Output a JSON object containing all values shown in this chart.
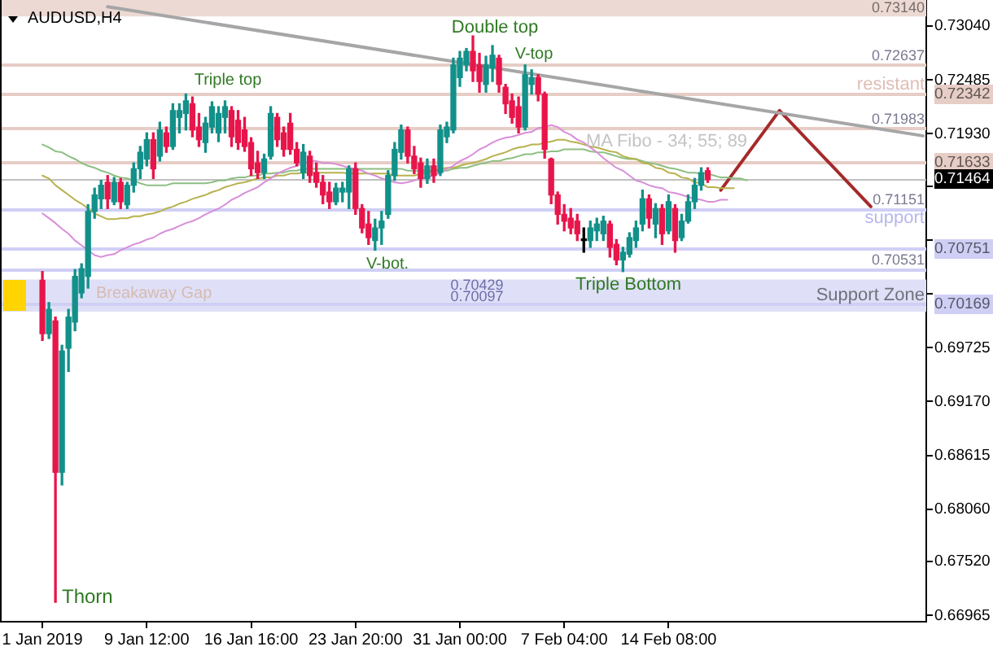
{
  "chart_data": {
    "type": "candlestick",
    "title": "AUDUSD,H4",
    "categories": [
      null,
      null,
      null,
      null,
      null,
      null,
      "1 Jan 2019",
      null,
      null,
      null,
      null,
      null,
      null,
      null,
      null,
      null,
      null,
      null,
      null,
      null,
      null,
      null,
      "9 Jan 12:00",
      null,
      null,
      null,
      null,
      null,
      null,
      null,
      null,
      null,
      null,
      null,
      null,
      null,
      null,
      null,
      "16 Jan 16:00",
      null,
      null,
      null,
      null,
      null,
      null,
      null,
      null,
      null,
      null,
      null,
      null,
      null,
      null,
      null,
      "23 Jan 20:00",
      null,
      null,
      null,
      null,
      null,
      null,
      null,
      null,
      null,
      null,
      null,
      null,
      null,
      null,
      null,
      "31 Jan 00:00",
      null,
      null,
      null,
      null,
      null,
      null,
      null,
      null,
      null,
      null,
      null,
      null,
      null,
      null,
      null,
      "7 Feb 04:00",
      null,
      null,
      null,
      null,
      null,
      null,
      null,
      null,
      null,
      null,
      null,
      null,
      null,
      null,
      null,
      "14 Feb 08:00",
      null,
      null,
      null,
      null,
      null,
      null,
      null,
      null,
      null,
      null,
      null,
      null,
      null,
      null,
      null,
      null,
      null,
      null,
      null,
      null,
      null,
      null,
      null,
      null,
      null,
      null,
      null,
      null,
      null,
      null,
      null,
      null,
      null,
      null,
      null,
      null,
      null,
      null,
      null
    ],
    "ohlc": [
      null,
      null,
      null,
      null,
      null,
      null,
      [
        0.7042,
        0.7051,
        0.698,
        0.6987
      ],
      [
        0.6987,
        0.7019,
        0.6982,
        0.7012
      ],
      [
        0.7,
        0.7004,
        0.671,
        0.6844
      ],
      [
        0.6844,
        0.6975,
        0.6831,
        0.6969
      ],
      [
        0.6972,
        0.7012,
        0.6948,
        0.7004
      ],
      [
        0.6999,
        0.7053,
        0.699,
        0.7046
      ],
      [
        0.7029,
        0.7059,
        0.7024,
        0.7054
      ],
      [
        0.7046,
        0.712,
        0.7034,
        0.7113
      ],
      [
        0.7113,
        0.7137,
        0.7106,
        0.713
      ],
      [
        0.7126,
        0.7145,
        0.7116,
        0.714
      ],
      [
        0.7143,
        0.715,
        0.7116,
        0.7126
      ],
      [
        0.7123,
        0.7148,
        0.712,
        0.7143
      ],
      [
        0.7143,
        0.7147,
        0.7116,
        0.7123
      ],
      [
        0.712,
        0.7143,
        0.7116,
        0.714
      ],
      [
        0.714,
        0.7163,
        0.7133,
        0.7157
      ],
      [
        0.7157,
        0.718,
        0.7147,
        0.7174
      ],
      [
        0.7167,
        0.7194,
        0.716,
        0.7187
      ],
      [
        0.7187,
        0.7194,
        0.7147,
        0.7157
      ],
      [
        0.717,
        0.7205,
        0.7165,
        0.7197
      ],
      [
        0.7194,
        0.72,
        0.7174,
        0.718
      ],
      [
        0.718,
        0.7224,
        0.7177,
        0.7217
      ],
      [
        0.721,
        0.7224,
        0.7194,
        0.7217
      ],
      [
        0.7214,
        0.7234,
        0.7197,
        0.7227
      ],
      [
        0.7224,
        0.7231,
        0.719,
        0.7197
      ],
      [
        0.72,
        0.7214,
        0.718,
        0.7187
      ],
      [
        0.7184,
        0.721,
        0.7174,
        0.7204
      ],
      [
        0.72,
        0.7226,
        0.7194,
        0.7221
      ],
      [
        0.7194,
        0.7221,
        0.7185,
        0.7214
      ],
      [
        0.721,
        0.7227,
        0.7194,
        0.7221
      ],
      [
        0.7217,
        0.7221,
        0.718,
        0.719
      ],
      [
        0.7207,
        0.7217,
        0.7177,
        0.7184
      ],
      [
        0.7197,
        0.721,
        0.7175,
        0.718
      ],
      [
        0.7184,
        0.7189,
        0.715,
        0.7157
      ],
      [
        0.7163,
        0.7175,
        0.7147,
        0.7153
      ],
      [
        0.7153,
        0.7172,
        0.7147,
        0.7167
      ],
      [
        0.717,
        0.7221,
        0.7167,
        0.7214
      ],
      [
        0.721,
        0.7214,
        0.718,
        0.7187
      ],
      [
        0.7194,
        0.72,
        0.717,
        0.7177
      ],
      [
        0.7204,
        0.7214,
        0.7172,
        0.7177
      ],
      [
        0.7177,
        0.7184,
        0.716,
        0.7163
      ],
      [
        0.7153,
        0.7182,
        0.7147,
        0.7174
      ],
      [
        0.717,
        0.7175,
        0.7143,
        0.715
      ],
      [
        0.7153,
        0.7163,
        0.7138,
        0.7143
      ],
      [
        0.7143,
        0.715,
        0.7121,
        0.713
      ],
      [
        0.7133,
        0.7143,
        0.7116,
        0.7123
      ],
      [
        0.7123,
        0.7142,
        0.712,
        0.7137
      ],
      [
        0.7133,
        0.7143,
        0.7123,
        0.7137
      ],
      [
        0.7133,
        0.716,
        0.7116,
        0.7157
      ],
      [
        0.7157,
        0.7163,
        0.711,
        0.7116
      ],
      [
        0.7116,
        0.712,
        0.7091,
        0.7096
      ],
      [
        0.71,
        0.7113,
        0.7079,
        0.7086
      ],
      [
        0.7083,
        0.7105,
        0.7073,
        0.7096
      ],
      [
        0.7096,
        0.7113,
        0.7079,
        0.7103
      ],
      [
        0.711,
        0.7155,
        0.7106,
        0.715
      ],
      [
        0.715,
        0.7184,
        0.7145,
        0.7177
      ],
      [
        0.7174,
        0.7202,
        0.7167,
        0.7197
      ],
      [
        0.7197,
        0.72,
        0.7163,
        0.717
      ],
      [
        0.717,
        0.718,
        0.7152,
        0.7157
      ],
      [
        0.7163,
        0.7168,
        0.7138,
        0.7147
      ],
      [
        0.7147,
        0.7167,
        0.7142,
        0.716
      ],
      [
        0.716,
        0.7167,
        0.7143,
        0.715
      ],
      [
        0.7153,
        0.7202,
        0.715,
        0.7197
      ],
      [
        0.719,
        0.7205,
        0.7184,
        0.72
      ],
      [
        0.7197,
        0.7271,
        0.7194,
        0.7264
      ],
      [
        0.7251,
        0.7278,
        0.7242,
        0.7271
      ],
      [
        0.7264,
        0.7281,
        0.7258,
        0.7278
      ],
      [
        0.7278,
        0.7294,
        0.7247,
        0.7258
      ],
      [
        0.7264,
        0.7276,
        0.7236,
        0.7247
      ],
      [
        0.7244,
        0.7273,
        0.7236,
        0.7264
      ],
      [
        0.7261,
        0.7284,
        0.7247,
        0.7274
      ],
      [
        0.7271,
        0.7274,
        0.7236,
        0.7244
      ],
      [
        0.7241,
        0.7244,
        0.7214,
        0.7224
      ],
      [
        0.7227,
        0.7234,
        0.7204,
        0.721
      ],
      [
        0.7221,
        0.7231,
        0.7194,
        0.72
      ],
      [
        0.72,
        0.7264,
        0.7197,
        0.7254
      ],
      [
        0.7244,
        0.7259,
        0.7234,
        0.7251
      ],
      [
        0.7251,
        0.7254,
        0.7227,
        0.7234
      ],
      [
        0.7234,
        0.7236,
        0.7168,
        0.7177
      ],
      [
        0.7167,
        0.7168,
        0.7121,
        0.713
      ],
      [
        0.713,
        0.7133,
        0.71,
        0.711
      ],
      [
        0.711,
        0.712,
        0.7093,
        0.7103
      ],
      [
        0.7106,
        0.7116,
        0.709,
        0.7096
      ],
      [
        0.7103,
        0.711,
        0.7083,
        0.709
      ],
      [
        0.7083,
        0.7096,
        0.7071,
        0.7083
      ],
      [
        0.7083,
        0.7103,
        0.7076,
        0.7096
      ],
      [
        0.7093,
        0.7106,
        0.7083,
        0.71
      ],
      [
        0.709,
        0.7108,
        0.7083,
        0.7103
      ],
      [
        0.71,
        0.7103,
        0.7066,
        0.7076
      ],
      [
        0.7079,
        0.7084,
        0.7058,
        0.7063
      ],
      [
        0.7063,
        0.7076,
        0.7051,
        0.7071
      ],
      [
        0.7069,
        0.7091,
        0.7066,
        0.7086
      ],
      [
        0.7083,
        0.7103,
        0.7076,
        0.7096
      ],
      [
        0.71,
        0.7135,
        0.7093,
        0.7126
      ],
      [
        0.7126,
        0.713,
        0.7096,
        0.7106
      ],
      [
        0.71,
        0.7121,
        0.7086,
        0.7116
      ],
      [
        0.7116,
        0.712,
        0.7079,
        0.709
      ],
      [
        0.7093,
        0.713,
        0.709,
        0.7123
      ],
      [
        0.7116,
        0.712,
        0.7071,
        0.7083
      ],
      [
        0.7086,
        0.711,
        0.7083,
        0.7103
      ],
      [
        0.7103,
        0.713,
        0.7101,
        0.7123
      ],
      [
        0.7123,
        0.7147,
        0.7116,
        0.714
      ],
      [
        0.714,
        0.7158,
        0.7135,
        0.7153
      ],
      [
        0.7155,
        0.7158,
        0.7143,
        0.7146
      ],
      null,
      null,
      null,
      null,
      null,
      null,
      null,
      null,
      null,
      null,
      null,
      null,
      null,
      null,
      null,
      null,
      null,
      null,
      null,
      null,
      null,
      null,
      null,
      null,
      null,
      null,
      null,
      null,
      null,
      null,
      null,
      null,
      null
    ],
    "colors": [
      null,
      null,
      null,
      null,
      null,
      null,
      "#e8154b",
      "#12908a",
      "#e8154b",
      "#12908a",
      "#12908a",
      "#12908a",
      "#12908a",
      "#12908a",
      "#12908a",
      "#12908a",
      "#e8154b",
      "#12908a",
      "#e8154b",
      "#12908a",
      "#12908a",
      "#12908a",
      "#12908a",
      "#e8154b",
      "#12908a",
      "#e8154b",
      "#12908a",
      "#12908a",
      "#12908a",
      "#e8154b",
      "#e8154b",
      "#12908a",
      "#12908a",
      "#12908a",
      "#12908a",
      "#e8154b",
      "#e8154b",
      "#e8154b",
      "#e8154b",
      "#e8154b",
      "#12908a",
      "#12908a",
      "#e8154b",
      "#e8154b",
      "#e8154b",
      "#e8154b",
      "#12908a",
      "#e8154b",
      "#e8154b",
      "#e8154b",
      "#e8154b",
      "#12908a",
      "#12908a",
      "#12908a",
      "#e8154b",
      "#e8154b",
      "#e8154b",
      "#12908a",
      "#12908a",
      "#12908a",
      "#12908a",
      "#12908a",
      "#e8154b",
      "#e8154b",
      "#e8154b",
      "#12908a",
      "#e8154b",
      "#12908a",
      "#12908a",
      "#12908a",
      "#12908a",
      "#12908a",
      "#e8154b",
      "#e8154b",
      "#12908a",
      "#12908a",
      "#e8154b",
      "#e8154b",
      "#e8154b",
      "#e8154b",
      "#12908a",
      "#12908a",
      "#e8154b",
      "#e8154b",
      "#e8154b",
      "#e8154b",
      "#e8154b",
      "#e8154b",
      "#e8154b",
      "#000000",
      "#12908a",
      "#12908a",
      "#12908a",
      "#e8154b",
      "#e8154b",
      "#12908a",
      "#12908a",
      "#12908a",
      "#12908a",
      "#e8154b",
      "#12908a",
      "#e8154b",
      "#12908a",
      "#e8154b",
      "#12908a",
      "#12908a",
      "#12908a",
      "#12908a",
      "#e8154b",
      null,
      null,
      null,
      null,
      null,
      null,
      null,
      null,
      null,
      null,
      null,
      null,
      null,
      null,
      null,
      null,
      null,
      null,
      null,
      null,
      null,
      null,
      null,
      null,
      null,
      null,
      null,
      null,
      null,
      null,
      null,
      null,
      null
    ],
    "series": [
      {
        "type": "line",
        "color": "#d98ed9",
        "values": [
          null,
          null,
          null,
          null,
          null,
          null,
          0.7111,
          0.7106,
          0.7101,
          0.7095,
          0.709,
          0.7083,
          0.7078,
          0.7073,
          0.7068,
          0.7066,
          0.7068,
          0.7069,
          0.7073,
          0.7076,
          0.7079,
          0.7081,
          0.7084,
          0.7086,
          0.709,
          0.7093,
          0.7095,
          0.7098,
          0.7101,
          0.7103,
          0.7106,
          0.711,
          0.7113,
          0.7116,
          0.712,
          0.7125,
          0.7128,
          0.7132,
          0.7135,
          0.7138,
          0.7143,
          0.7147,
          0.7152,
          0.7155,
          0.7158,
          0.716,
          0.7163,
          0.7165,
          0.7165,
          0.7163,
          0.7163,
          0.7162,
          0.716,
          0.7158,
          0.7157,
          0.7155,
          0.7152,
          0.715,
          0.7147,
          0.7145,
          0.7143,
          0.7142,
          0.7143,
          0.7145,
          0.7147,
          0.7148,
          0.715,
          0.7153,
          0.7157,
          0.716,
          0.7165,
          0.7168,
          0.7172,
          0.7177,
          0.718,
          0.7184,
          0.7187,
          0.7189,
          0.719,
          0.7192,
          0.7194,
          0.7195,
          0.7199,
          0.72,
          0.7202,
          0.72,
          0.7195,
          0.7192,
          0.7187,
          0.7184,
          0.7179,
          0.7174,
          0.7168,
          0.7163,
          0.7158,
          0.7155,
          0.715,
          0.7145,
          0.7143,
          0.714,
          0.7138,
          0.7137,
          0.7133,
          0.7132,
          0.713,
          0.7128,
          0.7126,
          0.7125,
          0.7123,
          0.7123,
          0.7125,
          0.7125,
          null,
          null,
          null,
          null,
          null,
          null,
          null,
          null,
          null,
          null,
          null,
          null,
          null,
          null,
          null,
          null,
          null,
          null,
          null,
          null,
          null,
          null,
          null,
          null,
          null,
          null,
          null,
          null,
          null,
          null
        ]
      },
      {
        "type": "line",
        "color": "#b7b24e",
        "values": [
          null,
          null,
          null,
          null,
          null,
          null,
          0.715,
          0.7147,
          0.714,
          0.7135,
          0.713,
          0.7125,
          0.7121,
          0.7116,
          0.7111,
          0.7108,
          0.7105,
          0.7105,
          0.7106,
          0.7106,
          0.7108,
          0.7108,
          0.711,
          0.7111,
          0.7113,
          0.7116,
          0.7118,
          0.7121,
          0.7123,
          0.7126,
          0.7128,
          0.713,
          0.7133,
          0.7135,
          0.7138,
          0.714,
          0.7142,
          0.7143,
          0.7145,
          0.7147,
          0.7148,
          0.7148,
          0.715,
          0.715,
          0.7152,
          0.7152,
          0.7153,
          0.7153,
          0.7153,
          0.7153,
          0.7153,
          0.7153,
          0.7153,
          0.7152,
          0.7152,
          0.7152,
          0.7152,
          0.7152,
          0.7152,
          0.7152,
          0.715,
          0.715,
          0.715,
          0.715,
          0.7152,
          0.7153,
          0.7155,
          0.7157,
          0.7158,
          0.7158,
          0.716,
          0.7162,
          0.7163,
          0.7165,
          0.7167,
          0.717,
          0.7172,
          0.7174,
          0.7177,
          0.7179,
          0.718,
          0.7182,
          0.7182,
          0.7184,
          0.7185,
          0.7187,
          0.7187,
          0.7185,
          0.7184,
          0.7182,
          0.718,
          0.7179,
          0.7177,
          0.7175,
          0.7174,
          0.717,
          0.7168,
          0.7167,
          0.7163,
          0.7162,
          0.7158,
          0.7157,
          0.7153,
          0.7152,
          0.7148,
          0.7147,
          0.7143,
          0.7142,
          0.7138,
          0.7138,
          0.7137,
          0.7137,
          0.7137,
          null,
          null,
          null,
          null,
          null,
          null,
          null,
          null,
          null,
          null,
          null,
          null,
          null,
          null,
          null,
          null,
          null,
          null,
          null,
          null,
          null,
          null,
          null,
          null,
          null,
          null,
          null,
          null,
          null
        ]
      },
      {
        "type": "line",
        "color": "#8cbf82",
        "values": [
          null,
          null,
          null,
          null,
          null,
          null,
          0.7182,
          0.7179,
          0.7175,
          0.7174,
          0.717,
          0.7167,
          0.7163,
          0.716,
          0.7158,
          0.7155,
          0.7153,
          0.715,
          0.7148,
          0.7147,
          0.7145,
          0.7142,
          0.714,
          0.714,
          0.714,
          0.714,
          0.7142,
          0.7142,
          0.7142,
          0.7142,
          0.7142,
          0.7142,
          0.7143,
          0.7145,
          0.7145,
          0.7147,
          0.7148,
          0.7148,
          0.715,
          0.715,
          0.7152,
          0.7152,
          0.7153,
          0.7153,
          0.7155,
          0.7155,
          0.7157,
          0.7157,
          0.7157,
          0.7157,
          0.7157,
          0.7157,
          0.7157,
          0.7157,
          0.7157,
          0.7157,
          0.7157,
          0.7157,
          0.7157,
          0.7157,
          0.7157,
          0.7157,
          0.7155,
          0.7155,
          0.7155,
          0.7155,
          0.7155,
          0.7155,
          0.7155,
          0.7157,
          0.7158,
          0.7158,
          0.716,
          0.7162,
          0.7163,
          0.7165,
          0.7165,
          0.7167,
          0.7168,
          0.717,
          0.7172,
          0.7172,
          0.7174,
          0.7174,
          0.7175,
          0.7175,
          0.7177,
          0.7177,
          0.7177,
          0.7177,
          0.7175,
          0.7174,
          0.7174,
          0.7172,
          0.717,
          0.7168,
          0.7167,
          0.7167,
          0.7165,
          0.7163,
          0.7162,
          0.716,
          0.7158,
          0.7157,
          0.7155,
          0.7153,
          0.7153,
          0.7152,
          0.7152,
          0.715,
          0.7148,
          0.7148,
          0.7147,
          0.7147,
          0.7145,
          null,
          null,
          null,
          null,
          null,
          null,
          null,
          null,
          null,
          null,
          null,
          null,
          null,
          null,
          null,
          null,
          null,
          null,
          null,
          null,
          null,
          null,
          null,
          null,
          null,
          null,
          null
        ]
      },
      {
        "type": "line",
        "color": "#a6a6a6",
        "values": [
          null,
          null,
          null,
          null,
          null,
          null,
          null,
          null,
          null,
          null,
          null,
          null,
          null,
          null,
          null,
          null,
          0.7324,
          null,
          null,
          null,
          null,
          null,
          null,
          null,
          null,
          null,
          null,
          null,
          null,
          null,
          null,
          null,
          null,
          null,
          null,
          null,
          null,
          null,
          null,
          null,
          null,
          null,
          null,
          null,
          null,
          null,
          null,
          null,
          null,
          null,
          null,
          null,
          null,
          null,
          null,
          null,
          null,
          null,
          null,
          null,
          null,
          null,
          null,
          null,
          null,
          null,
          null,
          null,
          null,
          null,
          null,
          null,
          null,
          null,
          null,
          null,
          null,
          null,
          null,
          null,
          null,
          null,
          null,
          null,
          null,
          null,
          null,
          null,
          null,
          null,
          null,
          null,
          null,
          null,
          null,
          null,
          null,
          null,
          null,
          null,
          null,
          null,
          null,
          null,
          null,
          null,
          null,
          null,
          null,
          null,
          null,
          null,
          null,
          null,
          null,
          null,
          null,
          null,
          null,
          null,
          null,
          null,
          null,
          null,
          null,
          null,
          null,
          null,
          null,
          null,
          null,
          null,
          null,
          null,
          null,
          null,
          null,
          null,
          null,
          null,
          null,
          0.7191
        ]
      },
      {
        "type": "line",
        "color": "#a52a2a",
        "values": [
          null,
          null,
          null,
          null,
          null,
          null,
          null,
          null,
          null,
          null,
          null,
          null,
          null,
          null,
          null,
          null,
          null,
          null,
          null,
          null,
          null,
          null,
          null,
          null,
          null,
          null,
          null,
          null,
          null,
          null,
          null,
          null,
          null,
          null,
          null,
          null,
          null,
          null,
          null,
          null,
          null,
          null,
          null,
          null,
          null,
          null,
          null,
          null,
          null,
          null,
          null,
          null,
          null,
          null,
          null,
          null,
          null,
          null,
          null,
          null,
          null,
          null,
          null,
          null,
          null,
          null,
          null,
          null,
          null,
          null,
          null,
          null,
          null,
          null,
          null,
          null,
          null,
          null,
          null,
          null,
          null,
          null,
          null,
          null,
          null,
          null,
          null,
          null,
          null,
          null,
          null,
          null,
          null,
          null,
          null,
          null,
          null,
          null,
          null,
          null,
          null,
          null,
          null,
          null,
          null,
          null,
          null,
          null,
          null,
          null,
          0.7135,
          null,
          null,
          null,
          null,
          null,
          null,
          null,
          null,
          0.7217,
          null,
          null,
          null,
          null,
          null,
          null,
          null,
          null,
          null,
          null,
          null,
          null,
          null,
          0.7118,
          null,
          null,
          null,
          null,
          null,
          null,
          null,
          null
        ]
      }
    ],
    "ylim": [
      0.669,
      0.7331
    ],
    "yticks": [
      {
        "value": 0.7304,
        "label": "0.73040"
      },
      0.72485,
      {
        "value": 0.7193,
        "label": "0.71930"
      },
      {
        "value": 0.7139,
        "label": null
      },
      {
        "value": 0.70835,
        "label": null
      },
      {
        "value": 0.7028,
        "label": null
      },
      0.69725,
      {
        "value": 0.6917,
        "label": "0.69170"
      },
      0.68615,
      {
        "value": 0.6806,
        "label": "0.68060"
      },
      {
        "value": 0.6752,
        "label": "0.67520"
      },
      0.66965
    ],
    "ref_lines": [
      {
        "axis": "y",
        "value": 0.72637,
        "label": "0.72637",
        "color": "#e6cdc6"
      },
      {
        "axis": "y",
        "value": 0.72342,
        "label": "0.72342",
        "color": "#e6cdc6"
      },
      {
        "axis": "y",
        "value": 0.71983,
        "label": "0.71983",
        "color": "#e6cdc6"
      },
      {
        "axis": "y",
        "value": 0.71633,
        "label": "0.71633",
        "color": "#e6cdc6"
      },
      {
        "axis": "y",
        "value": 0.71464,
        "label": "0.71464",
        "color": "#c0c0c0"
      },
      {
        "axis": "y",
        "value": 0.71151,
        "label": "0.71151",
        "color": "#cfcff5"
      },
      {
        "axis": "y",
        "value": 0.70751,
        "label": "0.70751",
        "color": "#cfcff5"
      },
      {
        "axis": "y",
        "value": 0.70531,
        "label": "0.70531",
        "color": "#cfcff5"
      },
      {
        "axis": "y",
        "value": 0.70169,
        "label": "0.70169",
        "color": "#cfcff5"
      }
    ],
    "bands": [
      {
        "axis": "y",
        "from": 0.7314,
        "to": 0.7331,
        "label": "0.73140",
        "color": "#ecd9d3"
      },
      {
        "axis": "y",
        "from": 0.70097,
        "to": 0.70429,
        "label": "Support Zone",
        "color": "#dfe0f7"
      }
    ],
    "annotations": [
      "Triple top",
      "Double top",
      "V-top",
      "V-bot.",
      "Triple Bottom",
      "Thorn",
      "Breakaway Gap",
      "MA Fibo - 34; 55; 89",
      "resistant",
      "support",
      "0.70429",
      "0.70097"
    ]
  }
}
